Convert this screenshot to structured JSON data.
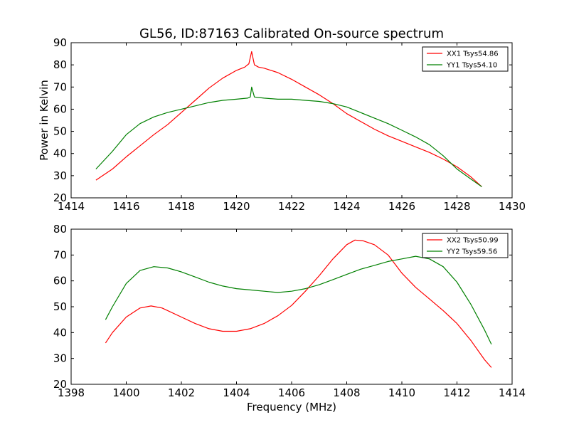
{
  "colors": {
    "XX": "#ff0000",
    "YY": "#008000",
    "axes": "#000000",
    "background": "#ffffff"
  },
  "chart_data": [
    {
      "type": "line",
      "title": "GL56, ID:87163 Calibrated On-source spectrum",
      "xlabel": "",
      "ylabel": "Power in Kelvin",
      "xlim": [
        1414,
        1430
      ],
      "ylim": [
        20,
        90
      ],
      "xticks": [
        1414,
        1416,
        1418,
        1420,
        1422,
        1424,
        1426,
        1428,
        1430
      ],
      "yticks": [
        20,
        30,
        40,
        50,
        60,
        70,
        80,
        90
      ],
      "xtick_labels": [
        "1414",
        "1416",
        "1418",
        "1420",
        "1422",
        "1424",
        "1426",
        "1428",
        "1430"
      ],
      "ytick_labels": [
        "20",
        "30",
        "40",
        "50",
        "60",
        "70",
        "80",
        "90"
      ],
      "grid": false,
      "legend": "top-right",
      "series": [
        {
          "name": "XX1 Tsys54.86",
          "color": "#ff0000",
          "points": [
            [
              1414.9,
              28
            ],
            [
              1415.5,
              33
            ],
            [
              1416,
              38.5
            ],
            [
              1416.5,
              43.5
            ],
            [
              1417,
              48.5
            ],
            [
              1417.5,
              53
            ],
            [
              1418,
              58.5
            ],
            [
              1418.5,
              64
            ],
            [
              1419,
              69.5
            ],
            [
              1419.5,
              74
            ],
            [
              1420,
              77.5
            ],
            [
              1420.3,
              79
            ],
            [
              1420.45,
              80.5
            ],
            [
              1420.55,
              86
            ],
            [
              1420.65,
              80
            ],
            [
              1420.8,
              79
            ],
            [
              1421,
              78.5
            ],
            [
              1421.5,
              76.5
            ],
            [
              1422,
              73.5
            ],
            [
              1422.5,
              70
            ],
            [
              1423,
              66.5
            ],
            [
              1423.5,
              62.5
            ],
            [
              1424,
              58
            ],
            [
              1424.5,
              54.5
            ],
            [
              1425,
              51
            ],
            [
              1425.5,
              48
            ],
            [
              1426,
              45.5
            ],
            [
              1426.5,
              43
            ],
            [
              1427,
              40.5
            ],
            [
              1427.5,
              37.5
            ],
            [
              1428,
              34
            ],
            [
              1428.5,
              29.5
            ],
            [
              1428.9,
              25
            ]
          ]
        },
        {
          "name": "YY1 Tsys54.10",
          "color": "#008000",
          "points": [
            [
              1414.9,
              33
            ],
            [
              1415.5,
              41
            ],
            [
              1416,
              48.5
            ],
            [
              1416.5,
              53.5
            ],
            [
              1417,
              56.5
            ],
            [
              1417.5,
              58.5
            ],
            [
              1418,
              60
            ],
            [
              1418.5,
              61.5
            ],
            [
              1419,
              63
            ],
            [
              1419.5,
              64
            ],
            [
              1420,
              64.5
            ],
            [
              1420.4,
              65
            ],
            [
              1420.5,
              65.5
            ],
            [
              1420.55,
              70
            ],
            [
              1420.65,
              65.5
            ],
            [
              1421,
              65
            ],
            [
              1421.5,
              64.5
            ],
            [
              1422,
              64.5
            ],
            [
              1422.5,
              64
            ],
            [
              1423,
              63.5
            ],
            [
              1423.5,
              62.5
            ],
            [
              1424,
              61
            ],
            [
              1424.5,
              58.5
            ],
            [
              1425,
              56
            ],
            [
              1425.5,
              53.5
            ],
            [
              1426,
              50.5
            ],
            [
              1426.5,
              47.5
            ],
            [
              1427,
              44
            ],
            [
              1427.5,
              39
            ],
            [
              1428,
              33
            ],
            [
              1428.5,
              28.5
            ],
            [
              1428.9,
              25
            ]
          ]
        }
      ]
    },
    {
      "type": "line",
      "title": "",
      "xlabel": "Frequency (MHz)",
      "ylabel": "",
      "xlim": [
        1398,
        1414
      ],
      "ylim": [
        20,
        80
      ],
      "xticks": [
        1398,
        1400,
        1402,
        1404,
        1406,
        1408,
        1410,
        1412,
        1414
      ],
      "yticks": [
        20,
        30,
        40,
        50,
        60,
        70,
        80
      ],
      "xtick_labels": [
        "1398",
        "1400",
        "1402",
        "1404",
        "1406",
        "1408",
        "1410",
        "1412",
        "1414"
      ],
      "ytick_labels": [
        "20",
        "30",
        "40",
        "50",
        "60",
        "70",
        "80"
      ],
      "grid": false,
      "legend": "top-right",
      "series": [
        {
          "name": "XX2 Tsys50.99",
          "color": "#ff0000",
          "points": [
            [
              1399.25,
              36
            ],
            [
              1399.5,
              40
            ],
            [
              1400,
              46
            ],
            [
              1400.5,
              49.5
            ],
            [
              1400.9,
              50.3
            ],
            [
              1401.3,
              49.5
            ],
            [
              1402,
              46
            ],
            [
              1402.5,
              43.5
            ],
            [
              1403,
              41.5
            ],
            [
              1403.5,
              40.5
            ],
            [
              1404,
              40.5
            ],
            [
              1404.5,
              41.5
            ],
            [
              1405,
              43.5
            ],
            [
              1405.5,
              46.5
            ],
            [
              1406,
              50.5
            ],
            [
              1406.5,
              56
            ],
            [
              1407,
              62
            ],
            [
              1407.5,
              68.5
            ],
            [
              1408,
              74
            ],
            [
              1408.3,
              75.8
            ],
            [
              1408.6,
              75.5
            ],
            [
              1409,
              74
            ],
            [
              1409.5,
              70
            ],
            [
              1410,
              63
            ],
            [
              1410.5,
              57.5
            ],
            [
              1411,
              53
            ],
            [
              1411.5,
              48.5
            ],
            [
              1412,
              43.5
            ],
            [
              1412.5,
              37
            ],
            [
              1413,
              29.5
            ],
            [
              1413.25,
              26.5
            ]
          ]
        },
        {
          "name": "YY2 Tsys59.56",
          "color": "#008000",
          "points": [
            [
              1399.25,
              45
            ],
            [
              1399.5,
              50
            ],
            [
              1400,
              59
            ],
            [
              1400.5,
              64
            ],
            [
              1401,
              65.5
            ],
            [
              1401.5,
              65
            ],
            [
              1402,
              63.5
            ],
            [
              1402.5,
              61.5
            ],
            [
              1403,
              59.5
            ],
            [
              1403.5,
              58
            ],
            [
              1404,
              57
            ],
            [
              1404.5,
              56.5
            ],
            [
              1405,
              56
            ],
            [
              1405.5,
              55.5
            ],
            [
              1406,
              56
            ],
            [
              1406.5,
              57
            ],
            [
              1407,
              58.5
            ],
            [
              1407.5,
              60.5
            ],
            [
              1408,
              62.5
            ],
            [
              1408.5,
              64.5
            ],
            [
              1409,
              66
            ],
            [
              1409.5,
              67.5
            ],
            [
              1410,
              68.5
            ],
            [
              1410.5,
              69.5
            ],
            [
              1411,
              68.5
            ],
            [
              1411.5,
              65.5
            ],
            [
              1412,
              59.5
            ],
            [
              1412.5,
              51
            ],
            [
              1413,
              41
            ],
            [
              1413.25,
              35.5
            ]
          ]
        }
      ]
    }
  ]
}
